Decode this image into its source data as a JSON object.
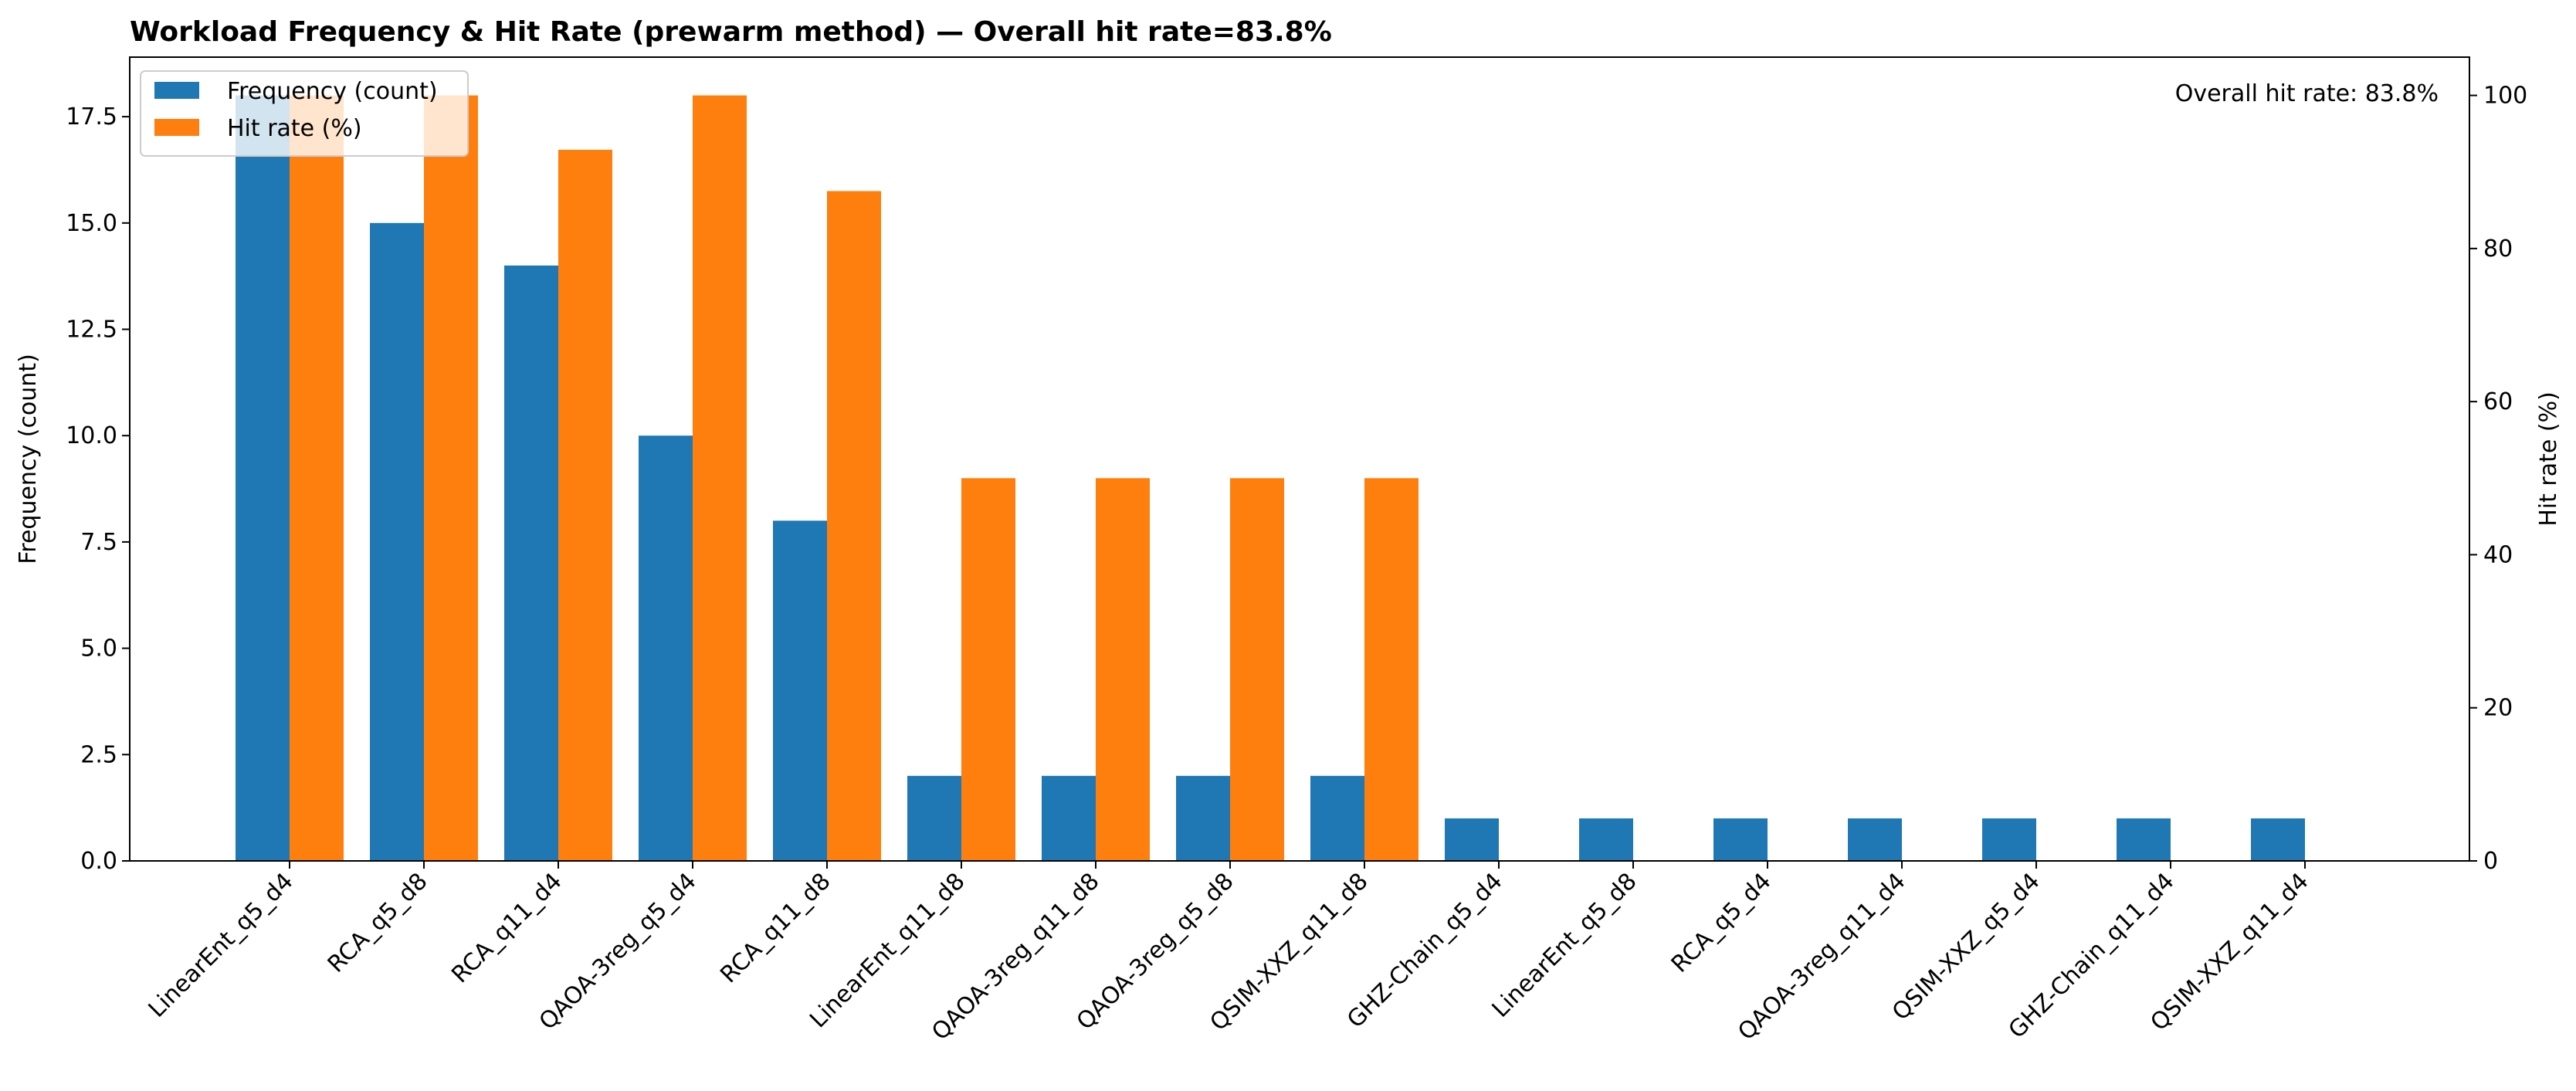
{
  "chart_data": {
    "type": "bar",
    "title": "Workload Frequency & Hit Rate (prewarm method) — Overall hit rate=83.8%",
    "xlabel": "",
    "ylabel_left": "Frequency (count)",
    "ylabel_right": "Hit rate (%)",
    "ylim_left": [
      0,
      18.9
    ],
    "ylim_right": [
      0,
      105
    ],
    "yticks_left": [
      0.0,
      2.5,
      5.0,
      7.5,
      10.0,
      12.5,
      15.0,
      17.5
    ],
    "yticks_left_labels": [
      "0.0",
      "2.5",
      "5.0",
      "7.5",
      "10.0",
      "12.5",
      "15.0",
      "17.5"
    ],
    "yticks_right": [
      0,
      20,
      40,
      60,
      80,
      100
    ],
    "yticks_right_labels": [
      "0",
      "20",
      "40",
      "60",
      "80",
      "100"
    ],
    "categories": [
      "LinearEnt_q5_d4",
      "RCA_q5_d8",
      "RCA_q11_d4",
      "QAOA-3reg_q5_d4",
      "RCA_q11_d8",
      "LinearEnt_q11_d8",
      "QAOA-3reg_q11_d8",
      "QAOA-3reg_q5_d8",
      "QSIM-XXZ_q11_d8",
      "GHZ-Chain_q5_d4",
      "LinearEnt_q5_d8",
      "RCA_q5_d4",
      "QAOA-3reg_q11_d4",
      "QSIM-XXZ_q5_d4",
      "GHZ-Chain_q11_d4",
      "QSIM-XXZ_q11_d4"
    ],
    "series": [
      {
        "name": "Frequency (count)",
        "axis": "left",
        "color": "#1f77b4",
        "values": [
          18,
          15,
          14,
          10,
          8,
          2,
          2,
          2,
          2,
          1,
          1,
          1,
          1,
          1,
          1,
          1
        ]
      },
      {
        "name": "Hit rate (%)",
        "axis": "right",
        "color": "#ff7f0e",
        "values": [
          100,
          100,
          92.9,
          100,
          87.5,
          50,
          50,
          50,
          50,
          0,
          0,
          0,
          0,
          0,
          0,
          0
        ]
      }
    ],
    "annotation": "Overall hit rate: 83.8%",
    "legend_position": "upper-left",
    "grid": false
  }
}
